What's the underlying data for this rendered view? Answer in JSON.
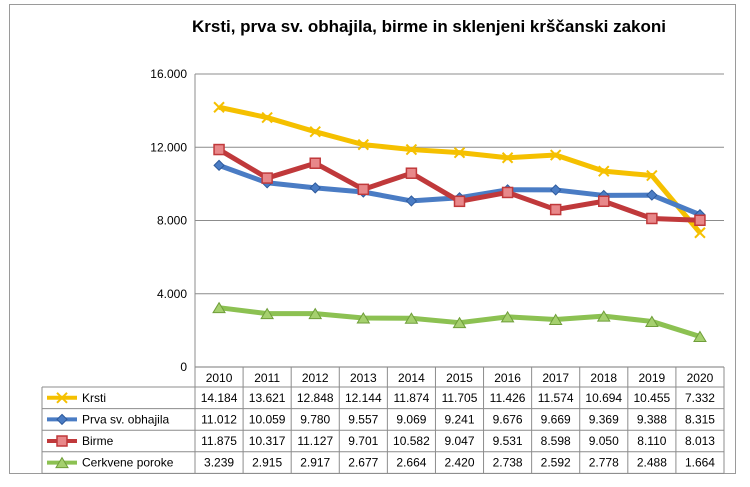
{
  "chart_data": {
    "type": "line",
    "title": "Krsti, prva sv. obhajila, birme in sklenjeni krščanski zakoni",
    "xlabel": "",
    "ylabel": "",
    "ylim": [
      0,
      16000
    ],
    "y_ticks": [
      {
        "value": 0,
        "label": "0"
      },
      {
        "value": 4000,
        "label": "4.000"
      },
      {
        "value": 8000,
        "label": "8.000"
      },
      {
        "value": 12000,
        "label": "12.000"
      },
      {
        "value": 16000,
        "label": "16.000"
      }
    ],
    "grid": true,
    "legend": "data table below chart",
    "categories": [
      "2010",
      "2011",
      "2012",
      "2013",
      "2014",
      "2015",
      "2016",
      "2017",
      "2018",
      "2019",
      "2020"
    ],
    "series": [
      {
        "name": "Krsti",
        "color": "#f5c000",
        "marker": "x",
        "values": [
          14184,
          13621,
          12848,
          12144,
          11874,
          11705,
          11426,
          11574,
          10694,
          10455,
          7332
        ],
        "labels": [
          "14.184",
          "13.621",
          "12.848",
          "12.144",
          "11.874",
          "11.705",
          "11.426",
          "11.574",
          "10.694",
          "10.455",
          "7.332"
        ]
      },
      {
        "name": "Prva sv. obhajila",
        "color": "#4a7cc4",
        "marker": "diamond",
        "values": [
          11012,
          10059,
          9780,
          9557,
          9069,
          9241,
          9676,
          9669,
          9369,
          9388,
          8315
        ],
        "labels": [
          "11.012",
          "10.059",
          "9.780",
          "9.557",
          "9.069",
          "9.241",
          "9.676",
          "9.669",
          "9.369",
          "9.388",
          "8.315"
        ]
      },
      {
        "name": "Birme",
        "color": "#c0393b",
        "marker": "square",
        "values": [
          11875,
          10317,
          11127,
          9701,
          10582,
          9047,
          9531,
          8598,
          9050,
          8110,
          8013
        ],
        "labels": [
          "11.875",
          "10.317",
          "11.127",
          "9.701",
          "10.582",
          "9.047",
          "9.531",
          "8.598",
          "9.050",
          "8.110",
          "8.013"
        ]
      },
      {
        "name": "Cerkvene poroke",
        "color": "#8cc152",
        "marker": "triangle",
        "values": [
          3239,
          2915,
          2917,
          2677,
          2664,
          2420,
          2738,
          2592,
          2778,
          2488,
          1664
        ],
        "labels": [
          "3.239",
          "2.915",
          "2.917",
          "2.677",
          "2.664",
          "2.420",
          "2.738",
          "2.592",
          "2.778",
          "2.488",
          "1.664"
        ]
      }
    ]
  }
}
